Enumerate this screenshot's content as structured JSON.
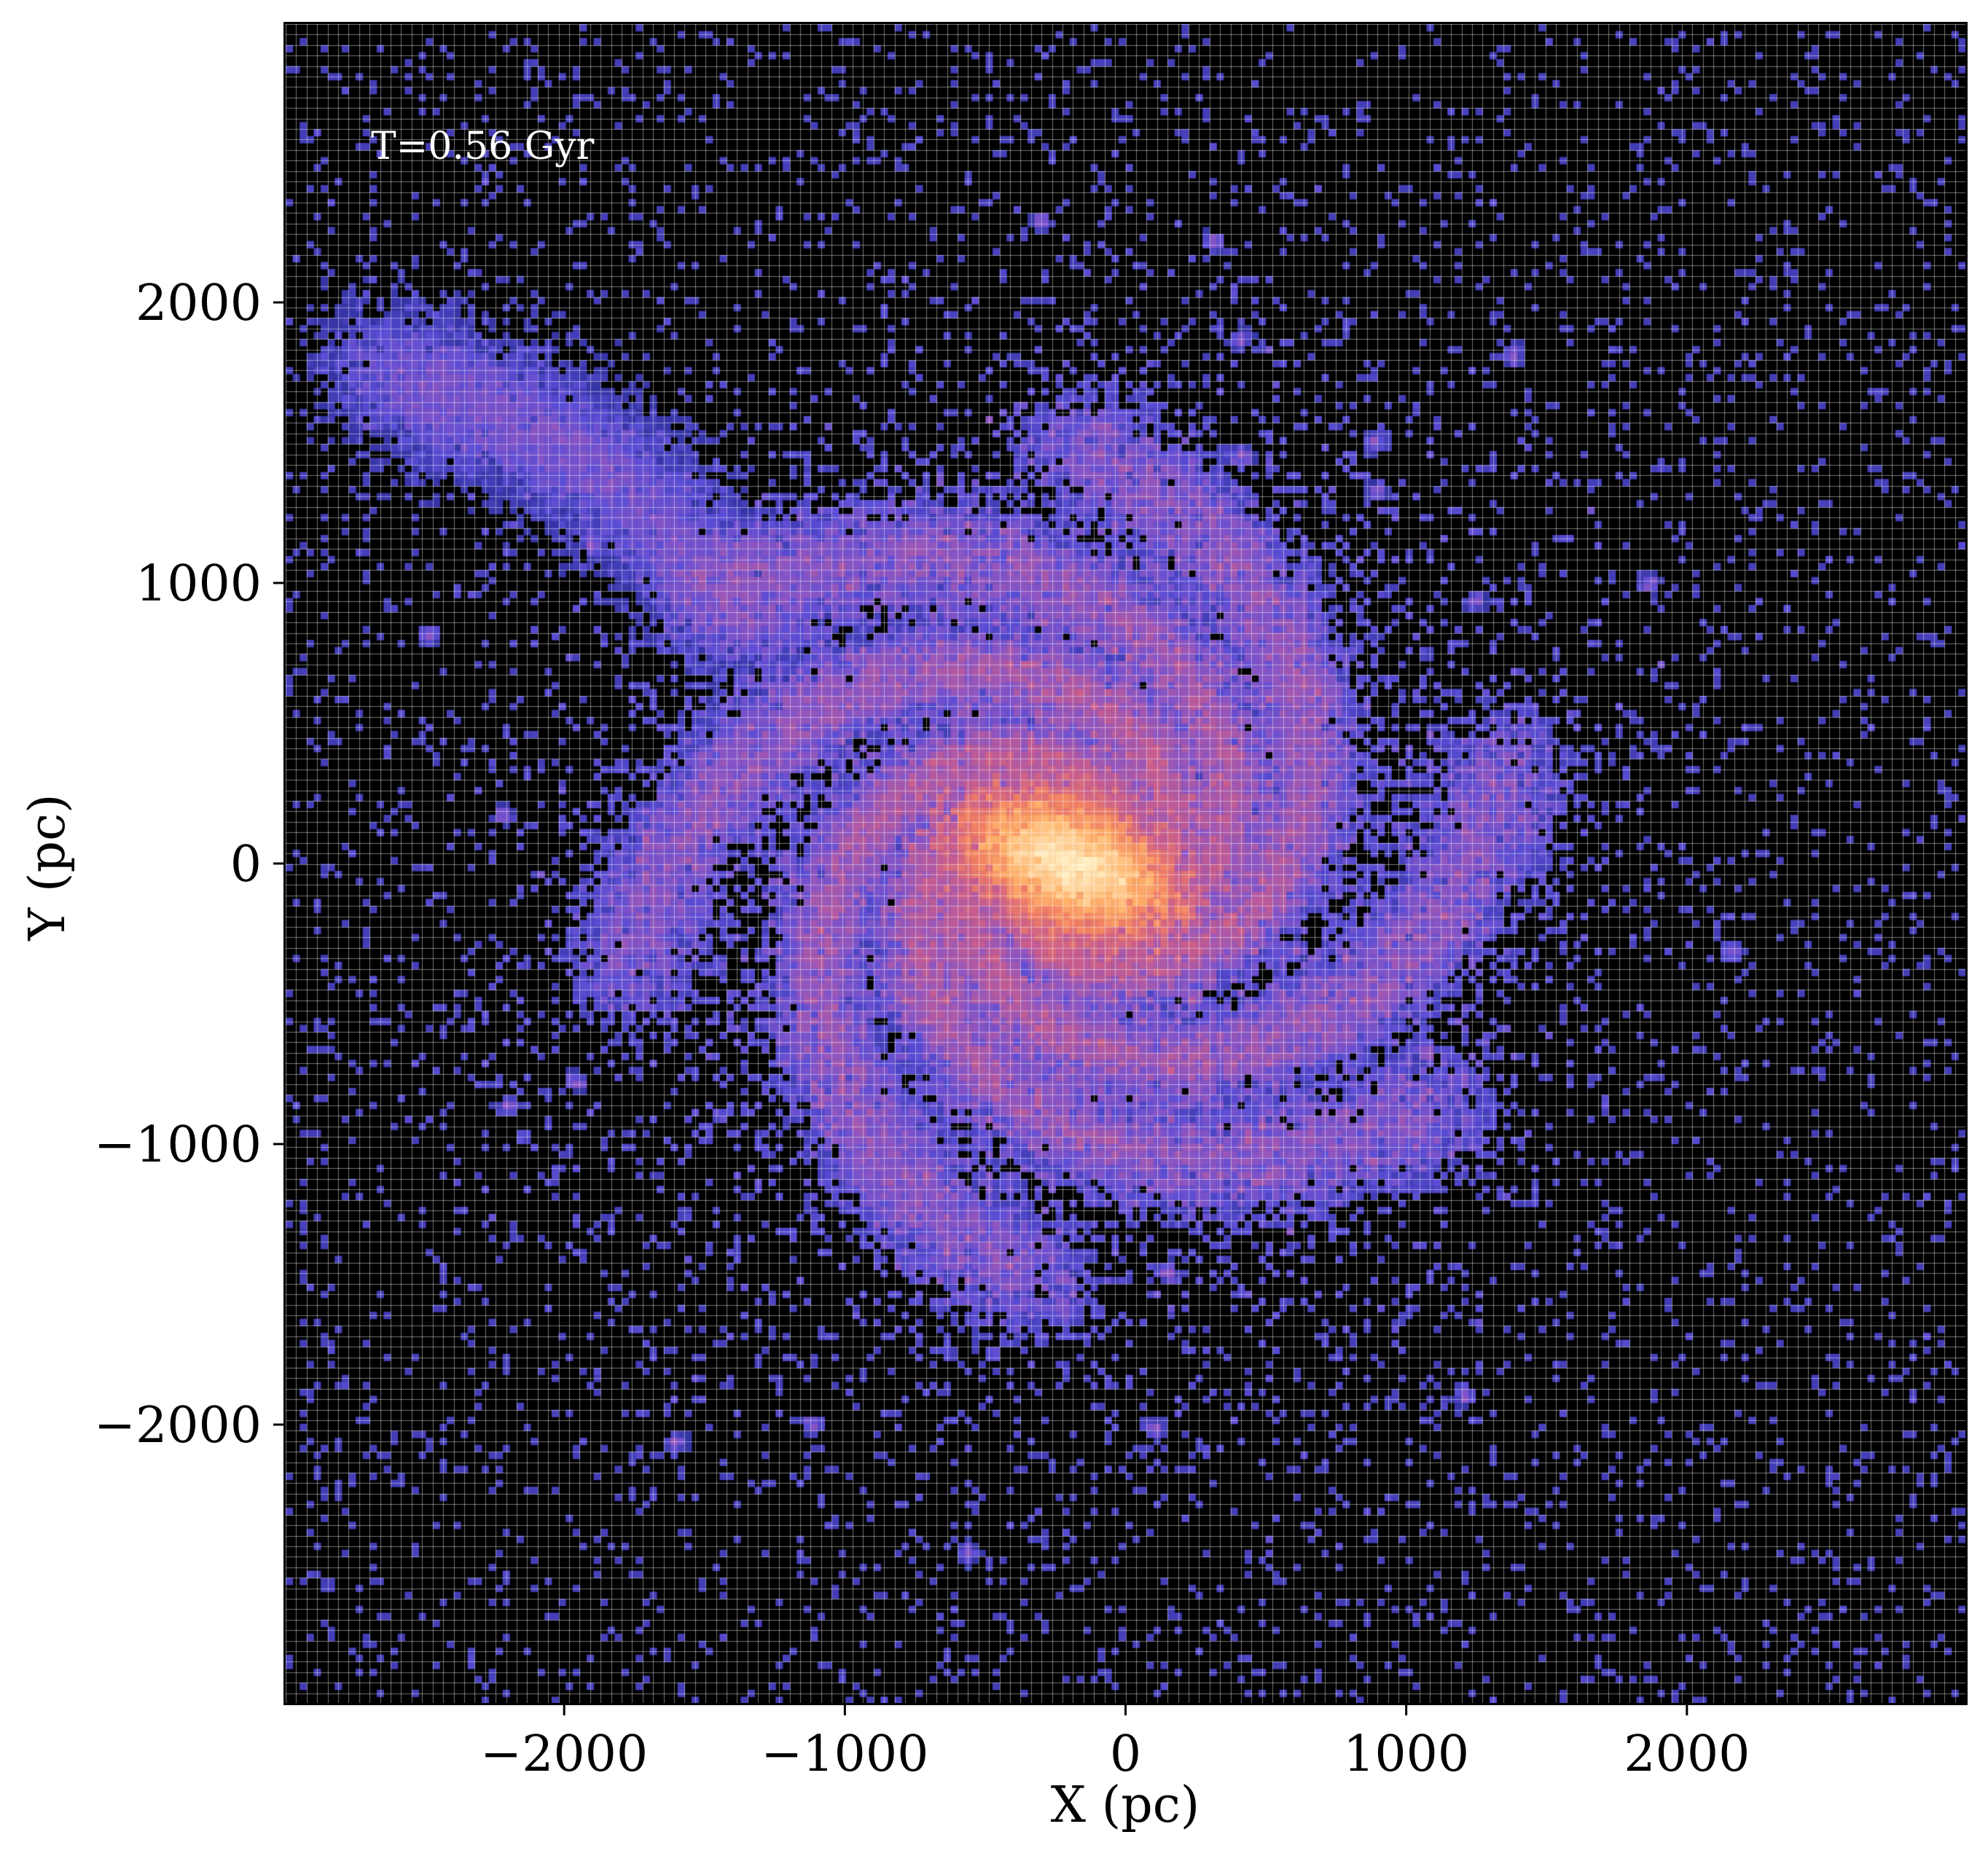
{
  "chart_data": {
    "type": "heatmap",
    "title": "",
    "annotation": "T=0.56 Gyr",
    "xlabel": "X (pc)",
    "ylabel": "Y (pc)",
    "xlim": [
      -3000,
      3000
    ],
    "ylim": [
      -3000,
      3000
    ],
    "x_ticks": [
      -2000,
      -1000,
      0,
      1000,
      2000
    ],
    "y_ticks": [
      -2000,
      -1000,
      0,
      1000,
      2000
    ],
    "x_tick_labels": [
      "−2000",
      "−1000",
      "0",
      "1000",
      "2000"
    ],
    "y_tick_labels": [
      "−2000",
      "−1000",
      "0",
      "1000",
      "2000"
    ],
    "grid": true,
    "colormap": [
      "#000000",
      "#2e2f9a",
      "#5a4dd6",
      "#8d55c2",
      "#c75c8f",
      "#f07e63",
      "#ffb26a",
      "#fff2c8"
    ],
    "background": "#000000",
    "features": {
      "galaxy_center_pc": [
        -200,
        0
      ],
      "bar_length_pc": 500,
      "disk_extent_pc": 1500,
      "spiral_arms": 2
    }
  }
}
